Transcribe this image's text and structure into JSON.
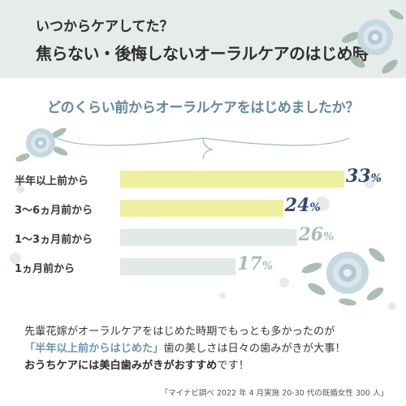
{
  "header": {
    "line1": "いつからケアしてた？",
    "line2": "焦らない・後悔しないオーラルケアのはじめ時"
  },
  "question": "どのくらい前からオーラルケアをはじめましたか？",
  "chart_data": {
    "type": "bar",
    "orientation": "horizontal",
    "categories": [
      "半年以上前から",
      "3〜6ヵ月前から",
      "1〜3ヵ月前から",
      "1ヵ月前から"
    ],
    "values": [
      33,
      24,
      26,
      17
    ],
    "value_labels": [
      "33",
      "24",
      "26",
      "17"
    ],
    "unit": "%",
    "bar_colors": [
      "#eef0a0",
      "#eef0a0",
      "#e3e9e7",
      "#e3e9e7"
    ],
    "label_colors": [
      "#2d4a78",
      "#2d4a78",
      "#a9bdb7",
      "#a9bdb7"
    ],
    "xlim": [
      0,
      33
    ],
    "grid": false,
    "legend": "none"
  },
  "footer": {
    "line1": "先輩花嫁がオーラルケアをはじめた時期でもっとも多かったのが",
    "highlight": "「半年以上前からはじめた」",
    "line2_rest": "歯の美しさは日々の歯みがきが大事！",
    "line3_bold": "おうちケアには美白歯みがきがおすすめ",
    "line3_end": "です！",
    "source": "「マイナビ調べ 2022 年 4 月実施 20-30 代の既婚女性 300 人」"
  },
  "colors": {
    "header_bg": "#e6ecea",
    "accent_blue": "#5f8aa0",
    "navy": "#2d4a78",
    "dots": "#e4ebe9",
    "flower": "#bfd3dd",
    "leaf": "#9db3a6"
  },
  "icons": [
    "rose-icon",
    "leaf-icon"
  ]
}
